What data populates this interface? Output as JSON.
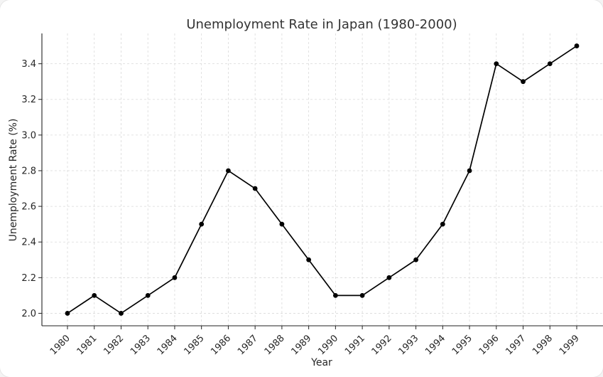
{
  "chart_data": {
    "type": "line",
    "title": "Unemployment Rate in Japan (1980-2000)",
    "xlabel": "Year",
    "ylabel": "Unemployment Rate (%)",
    "categories": [
      "1980",
      "1981",
      "1982",
      "1983",
      "1984",
      "1985",
      "1986",
      "1987",
      "1988",
      "1989",
      "1990",
      "1991",
      "1992",
      "1993",
      "1994",
      "1995",
      "1996",
      "1997",
      "1998",
      "1999"
    ],
    "series": [
      {
        "color": "#000000",
        "values": [
          2.0,
          2.1,
          2.0,
          2.1,
          2.2,
          2.5,
          2.8,
          2.7,
          2.5,
          2.3,
          2.1,
          2.1,
          2.2,
          2.3,
          2.5,
          2.8,
          3.4,
          3.3,
          3.4,
          3.5
        ]
      }
    ],
    "ylim": [
      1.93,
      3.57
    ],
    "yticks": [
      "2.0",
      "2.2",
      "2.4",
      "2.6",
      "2.8",
      "3.0",
      "3.2",
      "3.4"
    ],
    "grid": true,
    "marker": "circle"
  }
}
